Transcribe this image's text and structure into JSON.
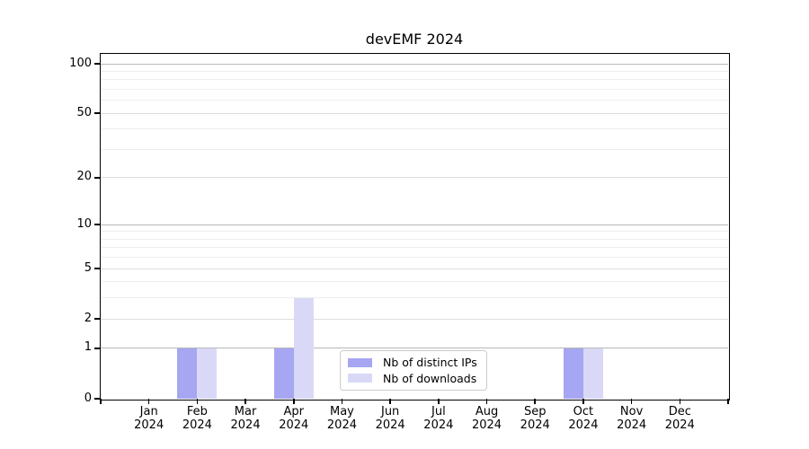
{
  "title": "devEMF 2024",
  "legend": {
    "items": [
      {
        "label": "Nb of distinct IPs",
        "color": "#a6a6f2"
      },
      {
        "label": "Nb of downloads",
        "color": "#d9d9f7"
      }
    ]
  },
  "axes": {
    "y_tick_labels": [
      "0",
      "1",
      "2",
      "5",
      "10",
      "20",
      "50",
      "100"
    ],
    "x_months": [
      "Jan",
      "Feb",
      "Mar",
      "Apr",
      "May",
      "Jun",
      "Jul",
      "Aug",
      "Sep",
      "Oct",
      "Nov",
      "Dec"
    ],
    "year": "2024"
  },
  "colors": {
    "bar_distinct_ips": "#a6a6f2",
    "bar_downloads": "#d9d9f7",
    "grid_major": "#b8b8b8",
    "grid_labeled_minor": "#dddddd",
    "grid_minor": "#eeeeee",
    "axis": "#000000"
  },
  "chart_data": {
    "type": "bar",
    "title": "devEMF 2024",
    "categories": [
      "Jan 2024",
      "Feb 2024",
      "Mar 2024",
      "Apr 2024",
      "May 2024",
      "Jun 2024",
      "Jul 2024",
      "Aug 2024",
      "Sep 2024",
      "Oct 2024",
      "Nov 2024",
      "Dec 2024"
    ],
    "series": [
      {
        "name": "Nb of distinct IPs",
        "color": "#a6a6f2",
        "values": [
          0,
          1,
          0,
          1,
          0,
          0,
          0,
          0,
          0,
          1,
          0,
          0
        ]
      },
      {
        "name": "Nb of downloads",
        "color": "#d9d9f7",
        "values": [
          0,
          1,
          0,
          3,
          0,
          0,
          0,
          0,
          0,
          1,
          0,
          0
        ]
      }
    ],
    "xlabel": "",
    "ylabel": "",
    "yscale": "log1p",
    "y_ticks": [
      0,
      1,
      2,
      5,
      10,
      20,
      50,
      100
    ],
    "y_grid_major": [
      1,
      10,
      100
    ],
    "y_grid_labeled_minor": [
      2,
      5,
      20,
      50
    ],
    "y_grid_minor": [
      3,
      4,
      6,
      7,
      8,
      9,
      30,
      40,
      60,
      70,
      80,
      90
    ],
    "ylim": [
      0,
      115
    ],
    "grid": "on",
    "legend_position": "lower center"
  }
}
